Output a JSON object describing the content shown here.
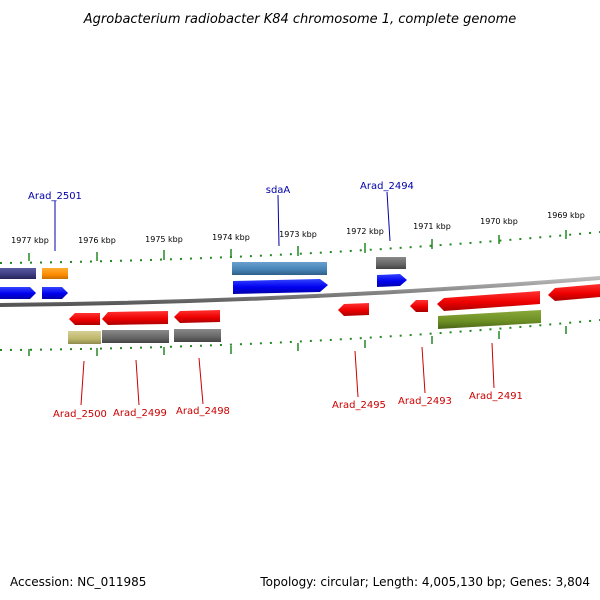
{
  "title": "Agrobacterium radiobacter K84 chromosome 1, complete genome",
  "footer": {
    "accession": "Accession: NC_011985",
    "topology": "Topology: circular; Length: 4,005,130 bp; Genes: 3,804"
  },
  "scale_labels": [
    "1977 kbp",
    "1976 kbp",
    "1975 kbp",
    "1974 kbp",
    "1973 kbp",
    "1972 kbp",
    "1971 kbp",
    "1970 kbp",
    "1969 kbp"
  ],
  "gene_labels": [
    {
      "text": "Arad_2501",
      "strand": "forward",
      "color": "#0000aa"
    },
    {
      "text": "sdaA",
      "strand": "forward",
      "color": "#0000aa"
    },
    {
      "text": "Arad_2494",
      "strand": "forward",
      "color": "#0000aa"
    },
    {
      "text": "Arad_2500",
      "strand": "reverse",
      "color": "#cc0000"
    },
    {
      "text": "Arad_2499",
      "strand": "reverse",
      "color": "#cc0000"
    },
    {
      "text": "Arad_2498",
      "strand": "reverse",
      "color": "#cc0000"
    },
    {
      "text": "Arad_2495",
      "strand": "reverse",
      "color": "#cc0000"
    },
    {
      "text": "Arad_2493",
      "strand": "reverse",
      "color": "#cc0000"
    },
    {
      "text": "Arad_2491",
      "strand": "reverse",
      "color": "#cc0000"
    }
  ],
  "colors": {
    "forward_gene": "#0000ee",
    "reverse_gene": "#ee0000",
    "backbone": "#888888",
    "scale_ticks": "#228822",
    "forward_label": "#0000aa",
    "reverse_label": "#cc0000"
  }
}
